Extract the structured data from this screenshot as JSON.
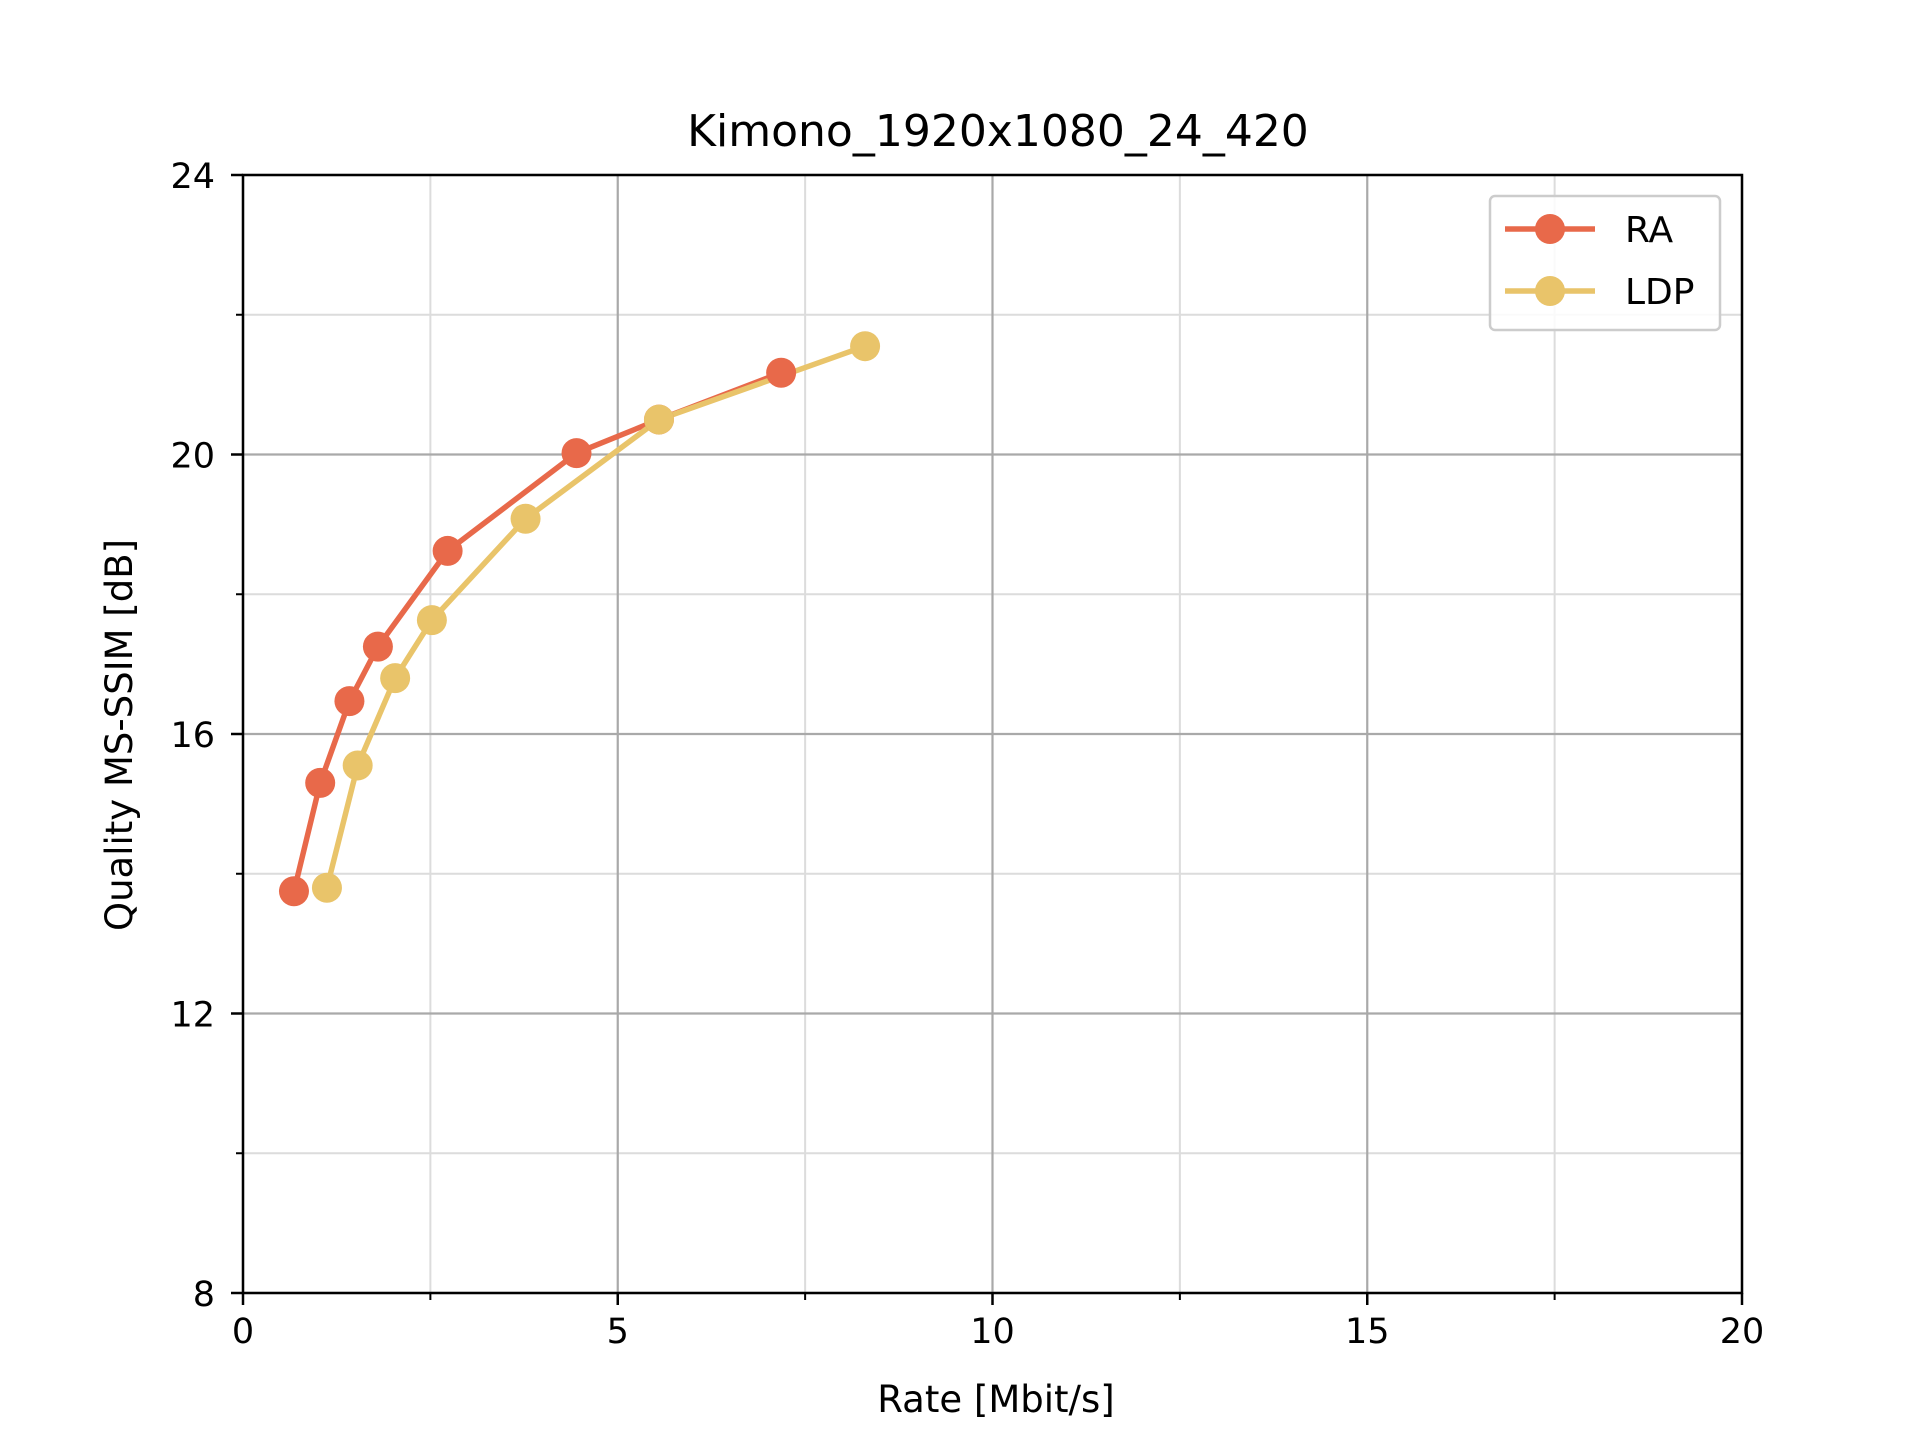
{
  "chart_data": {
    "type": "line",
    "title": "Kimono_1920x1080_24_420",
    "xlabel": "Rate [Mbit/s]",
    "ylabel": "Quality MS-SSIM [dB]",
    "xlim": [
      0,
      20
    ],
    "ylim": [
      8,
      24
    ],
    "xticks": [
      0,
      5,
      10,
      15,
      20
    ],
    "yticks": [
      8,
      12,
      16,
      20,
      24
    ],
    "x_minor_step": 2.5,
    "y_minor_step": 2,
    "grid": true,
    "legend_position": "top-right",
    "series": [
      {
        "name": "RA",
        "color": "#e8694a",
        "points": [
          {
            "x": 0.68,
            "y": 13.75
          },
          {
            "x": 1.03,
            "y": 15.3
          },
          {
            "x": 1.42,
            "y": 16.47
          },
          {
            "x": 1.8,
            "y": 17.25
          },
          {
            "x": 2.73,
            "y": 18.62
          },
          {
            "x": 4.45,
            "y": 20.02
          },
          {
            "x": 5.55,
            "y": 20.5
          },
          {
            "x": 7.18,
            "y": 21.17
          }
        ]
      },
      {
        "name": "LDP",
        "color": "#e9c46a",
        "points": [
          {
            "x": 1.12,
            "y": 13.8
          },
          {
            "x": 1.53,
            "y": 15.55
          },
          {
            "x": 2.03,
            "y": 16.8
          },
          {
            "x": 2.52,
            "y": 17.63
          },
          {
            "x": 3.77,
            "y": 19.08
          },
          {
            "x": 5.55,
            "y": 20.5
          },
          {
            "x": 8.3,
            "y": 21.55
          }
        ]
      }
    ]
  }
}
